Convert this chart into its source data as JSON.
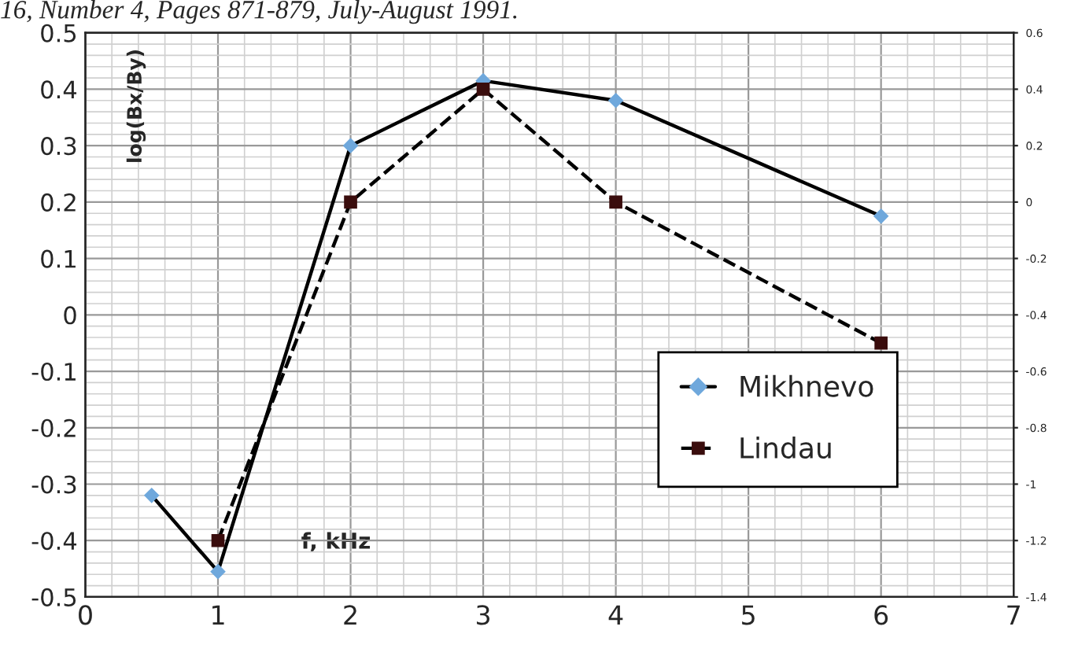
{
  "chart_data": {
    "type": "line",
    "xlabel": "f, kHz",
    "ylabel": "log(Bx/By)",
    "annotations": [
      "16, Number 4, Pages 871-879, July-August 1991."
    ],
    "series": [
      {
        "name": "Mikhnevo",
        "color": "#6fa8dc",
        "marker": "diamond",
        "line_style": "solid",
        "x": [
          0.5,
          1,
          2,
          3,
          4,
          6
        ],
        "values": [
          -0.32,
          -0.455,
          0.3,
          0.415,
          0.38,
          0.175
        ]
      },
      {
        "name": "Lindau",
        "color": "#3a0d0d",
        "marker": "square",
        "line_style": "dashed",
        "axis": "y2",
        "x": [
          1,
          2,
          3,
          4,
          6
        ],
        "values": [
          -1.2,
          0,
          0.4,
          0,
          -0.5
        ]
      }
    ],
    "xlim": [
      0,
      7
    ],
    "xticks": [
      0,
      1,
      2,
      3,
      4,
      5,
      6,
      7
    ],
    "ylim": [
      -0.5,
      0.5
    ],
    "yticks": [
      -0.5,
      -0.4,
      -0.3,
      -0.2,
      -0.1,
      0,
      0.1,
      0.2,
      0.3,
      0.4,
      0.5
    ],
    "y2lim": [
      -1.4,
      0.6
    ],
    "y2ticks": [
      -1.4,
      -1.2,
      -1,
      -0.8,
      -0.6,
      -0.4,
      -0.2,
      0,
      0.2,
      0.4,
      0.6
    ],
    "grid": true,
    "legend": "bottom right"
  }
}
